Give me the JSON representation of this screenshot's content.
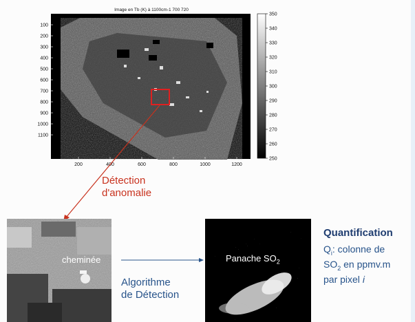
{
  "heatmap": {
    "title": "Image en Tb (K) à 1100cm-1 700  720",
    "y_ticks": [
      "100",
      "200",
      "300",
      "400",
      "500",
      "600",
      "700",
      "800",
      "900",
      "1000",
      "1100"
    ],
    "x_ticks": [
      "200",
      "400",
      "600",
      "800",
      "1000",
      "1200"
    ],
    "colorbar_ticks": [
      "350",
      "340",
      "330",
      "320",
      "310",
      "300",
      "290",
      "280",
      "270",
      "260",
      "250"
    ],
    "roi_color": "#e02020"
  },
  "labels": {
    "detection_line1": "Détection",
    "detection_line2": "d'anomalie",
    "chimney": "cheminée",
    "algo_line1": "Algorithme",
    "algo_line2": "de Détection",
    "plume": "Panache SO",
    "plume_sub": "2",
    "quant_title": "Quantification",
    "q_symbol": "Q",
    "q_sub": "i",
    "q_text1": ": colonne de",
    "so2": "SO",
    "so2_sub": "2",
    "q_text2": " en ppmv.m",
    "q_text3": "par pixel ",
    "q_italic": "i"
  },
  "colors": {
    "red": "#c8321e",
    "blue": "#27538a",
    "navy": "#1f3d70"
  }
}
